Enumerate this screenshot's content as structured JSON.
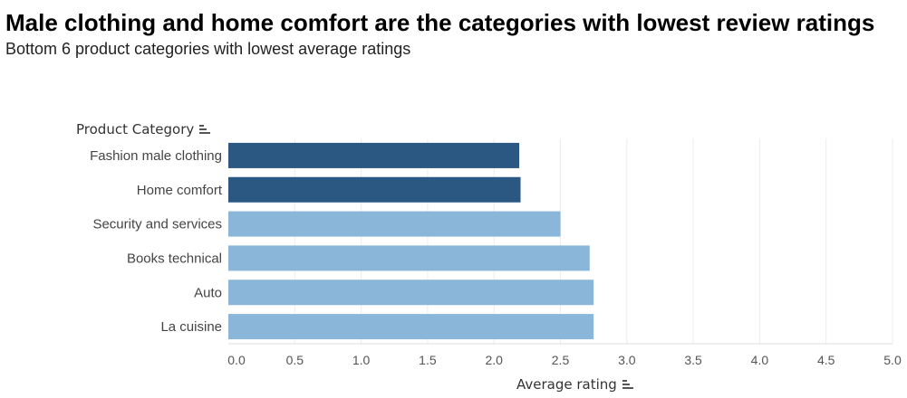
{
  "chart_data": {
    "type": "bar",
    "orientation": "horizontal",
    "title": "Male clothing and home comfort are the categories with lowest review ratings",
    "subtitle": "Bottom 6 product categories with lowest average ratings",
    "category_axis_label": "Product Category",
    "xlabel": "Average rating",
    "categories": [
      "Fashion male clothing",
      "Home comfort",
      "Security and services",
      "Books technical",
      "Auto",
      "La cuisine"
    ],
    "values": [
      2.19,
      2.2,
      2.5,
      2.72,
      2.75,
      2.75
    ],
    "highlighted": [
      true,
      true,
      false,
      false,
      false,
      false
    ],
    "xlim": [
      0,
      5
    ],
    "xticks": [
      "0.0",
      "0.5",
      "1.0",
      "1.5",
      "2.0",
      "2.5",
      "3.0",
      "3.5",
      "4.0",
      "4.5",
      "5.0"
    ],
    "grid": true,
    "colors": {
      "highlight": "#2b5783",
      "normal": "#8ab6da",
      "grid": "#ececec"
    }
  }
}
